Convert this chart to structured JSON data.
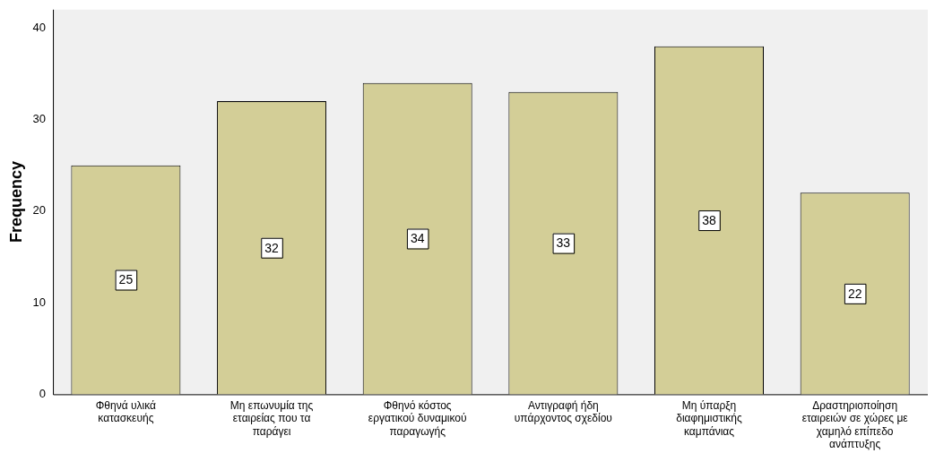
{
  "chart_data": {
    "type": "bar",
    "ylabel": "Frequency",
    "categories": [
      "Φθηνά υλικά κατασκευής",
      "Μη επωνυμία της εταιρείας που τα παράγει",
      "Φθηνό κόστος εργατικού δυναμικού παραγωγής",
      "Αντιγραφή ήδη υπάρχοντος σχεδίου",
      "Μη ύπαρξη διαφημιστικής καμπάνιας",
      "Δραστηριοποίηση εταιρειών σε χώρες με χαμηλό επίπεδο ανάπτυξης"
    ],
    "values": [
      25,
      32,
      34,
      33,
      38,
      22
    ],
    "color": "#d3ce97",
    "ylim": [
      0,
      42
    ],
    "yticks": [
      0,
      10,
      20,
      30,
      40
    ],
    "grid": false,
    "legend": false,
    "data_labels": true
  }
}
